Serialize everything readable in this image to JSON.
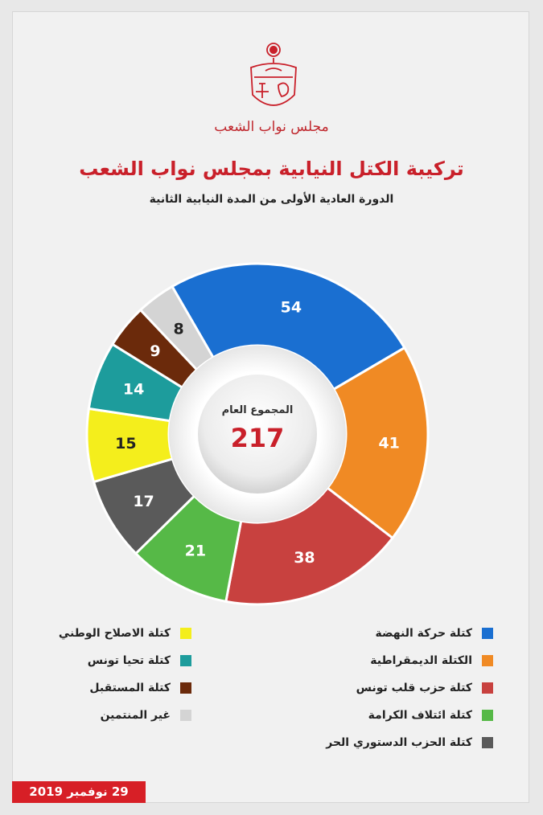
{
  "header": {
    "brand_text": "مجلس نواب الشعب",
    "title": "تركيبة الكتل النيابية بمجلس نواب الشعب",
    "subtitle": "الدورة العادية الأولى من المدة النيابية الثانية"
  },
  "center": {
    "label": "المجموع العام",
    "total": "217"
  },
  "date": "29 نوفمبر 2019",
  "colors": {
    "accent": "#c9202a",
    "background": "#f1f1f1"
  },
  "chart_data": {
    "type": "pie",
    "donut": true,
    "total": 217,
    "categories": [
      "كتلة حركة النهضة",
      "الكتلة الديمقراطية",
      "كتلة حزب قلب تونس",
      "كتلة ائتلاف الكرامة",
      "كتلة الحزب الدستوري الحر",
      "كتلة الاصلاح الوطني",
      "كتلة تحيا تونس",
      "كتلة المستقبل",
      "غير المنتمين"
    ],
    "values": [
      54,
      41,
      38,
      21,
      17,
      15,
      14,
      9,
      8
    ],
    "colors": [
      "#1a6fd1",
      "#f08a24",
      "#c8413f",
      "#56b947",
      "#5a5a5a",
      "#f4ee1c",
      "#1d9c9c",
      "#6b2a0b",
      "#d4d4d4"
    ],
    "legend_position": "bottom"
  }
}
